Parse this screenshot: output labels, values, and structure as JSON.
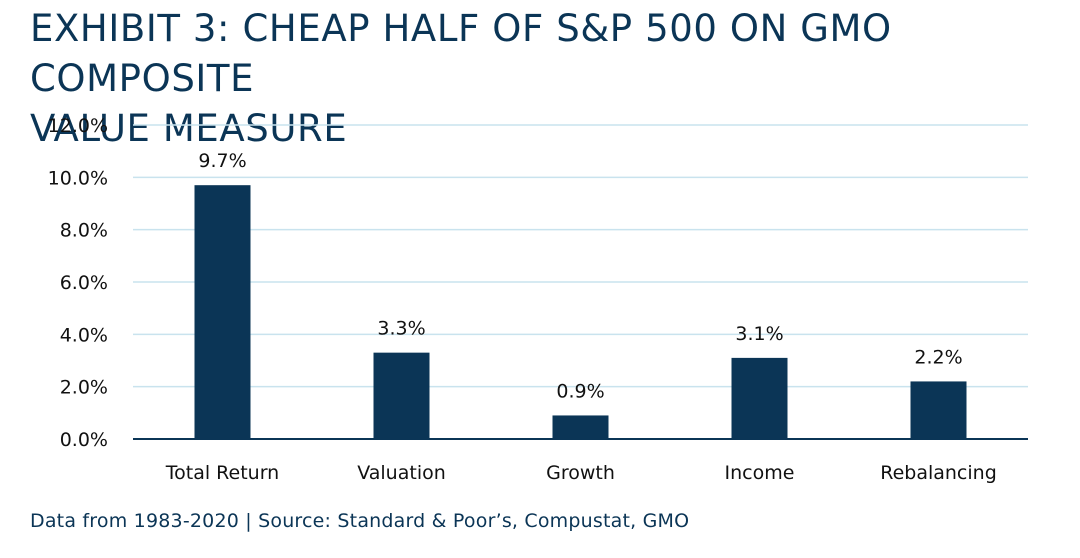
{
  "title_lines": [
    "EXHIBIT 3: CHEAP HALF OF S&P 500 ON GMO COMPOSITE",
    "VALUE MEASURE"
  ],
  "source": "Data from 1983-2020 | Source: Standard & Poor’s, Compustat, GMO",
  "colors": {
    "bar": "#0b3556",
    "grid": "#c9e3ee",
    "text": "#111111",
    "title": "#0b3556"
  },
  "chart_data": {
    "type": "bar",
    "title": "EXHIBIT 3: CHEAP HALF OF S&P 500 ON GMO COMPOSITE VALUE MEASURE",
    "categories": [
      "Total Return",
      "Valuation",
      "Growth",
      "Income",
      "Rebalancing"
    ],
    "values": [
      9.7,
      3.3,
      0.9,
      3.1,
      2.2
    ],
    "data_labels": [
      "9.7%",
      "3.3%",
      "0.9%",
      "3.1%",
      "2.2%"
    ],
    "ylim": [
      0,
      12
    ],
    "yticks": [
      0,
      2,
      4,
      6,
      8,
      10,
      12
    ],
    "ytick_labels": [
      "0.0%",
      "2.0%",
      "4.0%",
      "6.0%",
      "8.0%",
      "10.0%",
      "12.0%"
    ],
    "xlabel": "",
    "ylabel": "",
    "grid": true,
    "legend": "none"
  }
}
